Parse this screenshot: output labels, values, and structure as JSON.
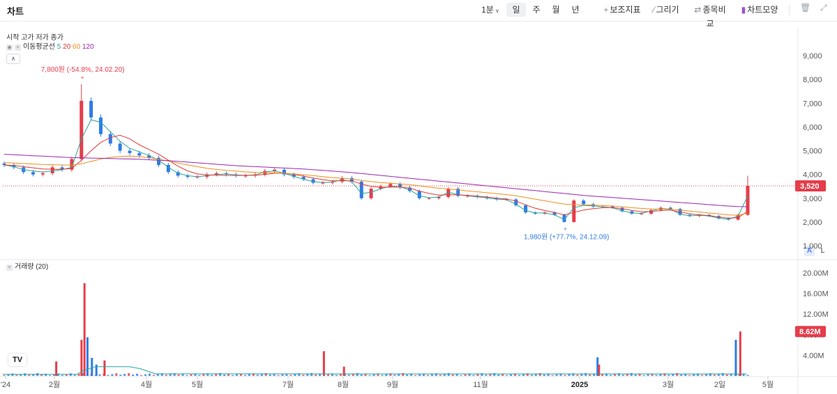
{
  "app_title": "차트",
  "toolbar": {
    "interval_label": "1분",
    "periods": [
      "일",
      "주",
      "월",
      "년"
    ],
    "active_period": "일",
    "indicators_label": "보조지표",
    "draw_label": "그리기",
    "compare_label": "종목비교",
    "style_label": "차트모양"
  },
  "legend": {
    "ohlc_label": "시작 고가 저가 종가",
    "ma_label": "이동평균선",
    "ma_periods": [
      "5",
      "20",
      "60",
      "120"
    ],
    "ma_colors": [
      "#26a69a",
      "#e53935",
      "#ef8f1a",
      "#9c27b0"
    ],
    "volume_label": "거래량 (20)"
  },
  "scale_buttons": [
    "A",
    "L"
  ],
  "colors": {
    "up": "#e53d4a",
    "down": "#2f7ce6",
    "last_price_tag": "#e53d4a"
  },
  "chart_data": [
    {
      "type": "candlestick",
      "title": "",
      "ylim": [
        1000,
        9000
      ],
      "price_ticks": [
        "1,000",
        "2,000",
        "3,000",
        "4,000",
        "5,000",
        "6,000",
        "7,000",
        "8,000",
        "9,000"
      ],
      "x_labels": [
        "'24",
        "2월",
        "4월",
        "5월",
        "7월",
        "8월",
        "9월",
        "11월",
        "2025",
        "3월",
        "2일",
        "5월"
      ],
      "last_price": "3,520",
      "annotation_high": "7,800원 (-54.8%, 24.02.20)",
      "annotation_low": "1,980원 (+77.7%, 24.12.09)",
      "close_series_weekly": [
        4400,
        4300,
        4100,
        4000,
        4050,
        4300,
        4200,
        4650,
        7100,
        6400,
        5700,
        5300,
        5000,
        4900,
        4800,
        4700,
        4400,
        4100,
        3950,
        3900,
        3900,
        4000,
        4050,
        4000,
        3950,
        3950,
        4000,
        4150,
        4200,
        4000,
        3900,
        3800,
        3650,
        3650,
        3700,
        3850,
        3700,
        3000,
        3400,
        3500,
        3600,
        3450,
        3300,
        3000,
        3000,
        3050,
        3400,
        3100,
        3100,
        3050,
        3000,
        2950,
        2950,
        2700,
        2400,
        2350,
        2400,
        2300,
        2000,
        2900,
        2750,
        2650,
        2650,
        2600,
        2450,
        2350,
        2350,
        2500,
        2600,
        2550,
        2300,
        2250,
        2300,
        2250,
        2150,
        2100,
        2300,
        3520
      ],
      "ma": [
        {
          "name": "5",
          "values": [
            4400,
            4330,
            4200,
            4150,
            4100,
            4150,
            4200,
            4300,
            5500,
            6300,
            6200,
            5800,
            5400,
            5100,
            4950,
            4800,
            4600,
            4300,
            4050,
            3950,
            3900,
            3950,
            4000,
            4020,
            3980,
            3960,
            3980,
            4100,
            4150,
            4050,
            3920,
            3800,
            3700,
            3660,
            3680,
            3780,
            3700,
            3200,
            3250,
            3400,
            3500,
            3480,
            3350,
            3100,
            3020,
            3050,
            3250,
            3150,
            3100,
            3060,
            3010,
            2960,
            2940,
            2750,
            2480,
            2380,
            2380,
            2300,
            2100,
            2600,
            2700,
            2680,
            2640,
            2600,
            2470,
            2380,
            2360,
            2470,
            2560,
            2540,
            2330,
            2260,
            2280,
            2250,
            2160,
            2110,
            2250,
            3100
          ]
        },
        {
          "name": "20",
          "values": [
            4400,
            4380,
            4330,
            4280,
            4230,
            4220,
            4220,
            4250,
            4600,
            5000,
            5350,
            5550,
            5650,
            5500,
            5250,
            5050,
            4850,
            4600,
            4350,
            4150,
            4020,
            3980,
            3970,
            3960,
            3960,
            3960,
            3970,
            4000,
            4050,
            4050,
            4000,
            3930,
            3850,
            3780,
            3730,
            3740,
            3730,
            3600,
            3500,
            3460,
            3470,
            3470,
            3420,
            3300,
            3200,
            3130,
            3150,
            3140,
            3120,
            3090,
            3050,
            3000,
            2970,
            2880,
            2720,
            2580,
            2480,
            2400,
            2300,
            2400,
            2500,
            2560,
            2600,
            2610,
            2560,
            2490,
            2430,
            2440,
            2480,
            2500,
            2420,
            2340,
            2300,
            2270,
            2210,
            2160,
            2180,
            2450
          ]
        },
        {
          "name": "60",
          "values": [
            4500,
            4480,
            4460,
            4440,
            4420,
            4410,
            4400,
            4400,
            4450,
            4550,
            4650,
            4720,
            4760,
            4770,
            4750,
            4700,
            4640,
            4560,
            4480,
            4400,
            4330,
            4260,
            4210,
            4170,
            4140,
            4110,
            4090,
            4080,
            4070,
            4050,
            4020,
            3990,
            3950,
            3910,
            3870,
            3840,
            3810,
            3750,
            3700,
            3660,
            3630,
            3600,
            3570,
            3520,
            3470,
            3420,
            3390,
            3350,
            3310,
            3270,
            3230,
            3190,
            3150,
            3100,
            3030,
            2960,
            2890,
            2820,
            2750,
            2730,
            2720,
            2710,
            2690,
            2670,
            2640,
            2600,
            2570,
            2550,
            2540,
            2530,
            2500,
            2460,
            2420,
            2380,
            2340,
            2300,
            2280,
            2380
          ]
        },
        {
          "name": "120",
          "values": [
            4850,
            4830,
            4810,
            4790,
            4770,
            4750,
            4730,
            4710,
            4700,
            4690,
            4680,
            4670,
            4660,
            4650,
            4640,
            4620,
            4600,
            4580,
            4550,
            4520,
            4490,
            4460,
            4430,
            4400,
            4370,
            4350,
            4330,
            4310,
            4290,
            4270,
            4250,
            4230,
            4200,
            4170,
            4140,
            4110,
            4080,
            4040,
            4000,
            3960,
            3920,
            3880,
            3840,
            3800,
            3760,
            3720,
            3680,
            3640,
            3600,
            3560,
            3520,
            3480,
            3440,
            3400,
            3360,
            3320,
            3280,
            3240,
            3200,
            3160,
            3120,
            3090,
            3060,
            3030,
            3000,
            2970,
            2940,
            2910,
            2880,
            2850,
            2820,
            2790,
            2760,
            2730,
            2700,
            2670,
            2650,
            2640
          ]
        }
      ]
    },
    {
      "type": "bar",
      "title": "거래량 (20)",
      "ylim": [
        0,
        20000000
      ],
      "volume_ticks": [
        "4.00M",
        "8.00M",
        "12.00M",
        "16.00M",
        "20.00M"
      ],
      "last_volume": "8.62M",
      "spikes": [
        {
          "x": 0.07,
          "value": 2800000,
          "dir": "up"
        },
        {
          "x": 0.104,
          "value": 7000000,
          "dir": "up"
        },
        {
          "x": 0.108,
          "value": 18000000,
          "dir": "up"
        },
        {
          "x": 0.112,
          "value": 7500000,
          "dir": "down"
        },
        {
          "x": 0.118,
          "value": 3500000,
          "dir": "down"
        },
        {
          "x": 0.124,
          "value": 2200000,
          "dir": "down"
        },
        {
          "x": 0.135,
          "value": 3000000,
          "dir": "up"
        },
        {
          "x": 0.43,
          "value": 4800000,
          "dir": "up"
        },
        {
          "x": 0.457,
          "value": 1800000,
          "dir": "up"
        },
        {
          "x": 0.798,
          "value": 3600000,
          "dir": "down"
        },
        {
          "x": 0.8,
          "value": 2200000,
          "dir": "up"
        },
        {
          "x": 0.984,
          "value": 7000000,
          "dir": "down"
        },
        {
          "x": 0.99,
          "value": 8620000,
          "dir": "up"
        }
      ],
      "avg_line": [
        {
          "x": 0.0,
          "value": 300000
        },
        {
          "x": 0.1,
          "value": 320000
        },
        {
          "x": 0.108,
          "value": 1000000
        },
        {
          "x": 0.125,
          "value": 1800000
        },
        {
          "x": 0.17,
          "value": 1800000
        },
        {
          "x": 0.185,
          "value": 1400000
        },
        {
          "x": 0.205,
          "value": 400000
        },
        {
          "x": 1.0,
          "value": 380000
        }
      ]
    }
  ]
}
